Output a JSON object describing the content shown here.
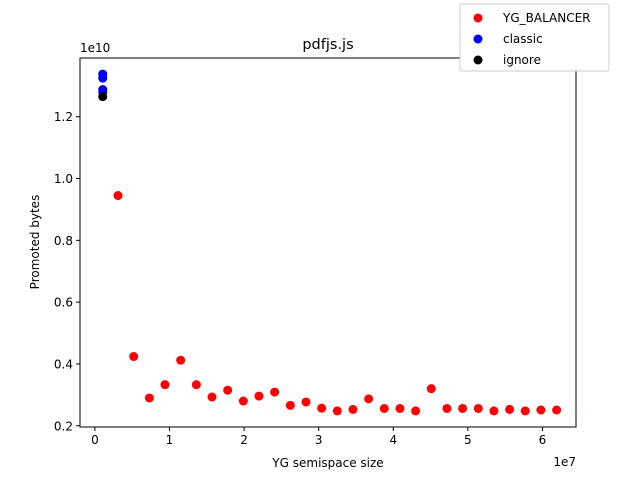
{
  "chart_data": {
    "type": "scatter",
    "title": "pdfjs.js",
    "xlabel": "YG semispace size",
    "ylabel": "Promoted bytes",
    "x_offset_label": "1e7",
    "y_offset_label": "1e10",
    "xlim": [
      -2000000,
      64500000
    ],
    "ylim": [
      1960000000,
      13900000000
    ],
    "x_ticks": [
      0,
      10000000,
      20000000,
      30000000,
      40000000,
      50000000,
      60000000
    ],
    "x_tick_labels": [
      "0",
      "1",
      "2",
      "3",
      "4",
      "5",
      "6"
    ],
    "y_ticks": [
      2000000000,
      4000000000,
      6000000000,
      8000000000,
      10000000000,
      12000000000
    ],
    "y_tick_labels": [
      "0.2",
      "0.4",
      "0.6",
      "0.8",
      "1.0",
      "1.2"
    ],
    "grid": false,
    "legend_position": "top-right, outside axes",
    "series": [
      {
        "name": "YG_BALANCER",
        "color": "#ff0000",
        "points": [
          [
            3100000,
            9450000000
          ],
          [
            5200000,
            4240000000
          ],
          [
            7300000,
            2900000000
          ],
          [
            9400000,
            3330000000
          ],
          [
            11500000,
            4120000000
          ],
          [
            13600000,
            3330000000
          ],
          [
            15700000,
            2930000000
          ],
          [
            17800000,
            3150000000
          ],
          [
            19900000,
            2800000000
          ],
          [
            22000000,
            2960000000
          ],
          [
            24100000,
            3090000000
          ],
          [
            26200000,
            2660000000
          ],
          [
            28300000,
            2770000000
          ],
          [
            30400000,
            2570000000
          ],
          [
            32500000,
            2480000000
          ],
          [
            34600000,
            2530000000
          ],
          [
            36700000,
            2870000000
          ],
          [
            38800000,
            2560000000
          ],
          [
            40900000,
            2560000000
          ],
          [
            43000000,
            2480000000
          ],
          [
            45100000,
            3200000000
          ],
          [
            47200000,
            2560000000
          ],
          [
            49300000,
            2560000000
          ],
          [
            51400000,
            2560000000
          ],
          [
            53500000,
            2480000000
          ],
          [
            55600000,
            2530000000
          ],
          [
            57700000,
            2480000000
          ],
          [
            59800000,
            2510000000
          ],
          [
            61900000,
            2510000000
          ]
        ]
      },
      {
        "name": "classic",
        "color": "#0000ff",
        "points": [
          [
            1050000,
            13380000000
          ],
          [
            1050000,
            13250000000
          ],
          [
            1050000,
            12880000000
          ],
          [
            1050000,
            12800000000
          ]
        ]
      },
      {
        "name": "ignore",
        "color": "#000000",
        "points": [
          [
            1050000,
            12650000000
          ]
        ]
      }
    ]
  }
}
